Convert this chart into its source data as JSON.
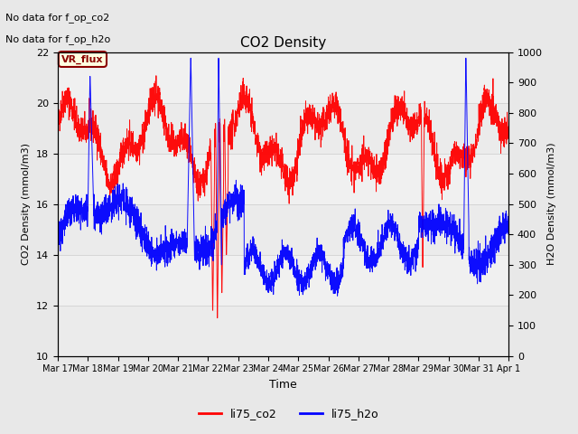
{
  "title": "CO2 Density",
  "xlabel": "Time",
  "ylabel_left": "CO2 Density (mmol/m3)",
  "ylabel_right": "H2O Density (mmol/m3)",
  "ylim_left": [
    10,
    22
  ],
  "ylim_right": [
    0,
    1000
  ],
  "yticks_left": [
    10,
    12,
    14,
    16,
    18,
    20,
    22
  ],
  "yticks_right": [
    0,
    100,
    200,
    300,
    400,
    500,
    600,
    700,
    800,
    900,
    1000
  ],
  "annotation_text1": "No data for f_op_co2",
  "annotation_text2": "No data for f_op_h2o",
  "legend_entries": [
    "li75_co2",
    "li75_h2o"
  ],
  "vr_flux_label": "VR_flux",
  "background_color": "#e8e8e8",
  "panel_color": "#f0f0f0",
  "grid_color": "#cccccc",
  "x_tick_labels": [
    "Mar 17",
    "Mar 18",
    "Mar 19",
    "Mar 20",
    "Mar 21",
    "Mar 22",
    "Mar 23",
    "Mar 24",
    "Mar 25",
    "Mar 26",
    "Mar 27",
    "Mar 28",
    "Mar 29",
    "Mar 30",
    "Mar 31",
    "Apr 1"
  ],
  "num_points": 3000,
  "seed": 42
}
